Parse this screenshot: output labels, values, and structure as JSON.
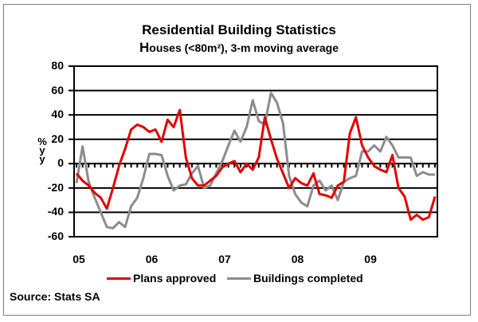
{
  "chart_data": {
    "type": "line",
    "title": "Residential Building Statistics",
    "subtitle_first_letter": "H",
    "subtitle_rest": "ouses (<80m²), 3-m moving average",
    "ylabel": "% y/y",
    "ylabel_parts": [
      "%",
      "y",
      "y"
    ],
    "xlabel": "",
    "ylim": [
      -60,
      80
    ],
    "yticks": [
      80,
      60,
      40,
      20,
      0,
      -20,
      -40,
      -60
    ],
    "ytick_labels": [
      "80",
      "60",
      "40",
      "20",
      "0",
      "-20",
      "-40",
      "-60"
    ],
    "xtick_labels": [
      "05",
      "06",
      "07",
      "08",
      "09"
    ],
    "grid": true,
    "legend_position": "bottom",
    "series": [
      {
        "name": "Plans approved",
        "color": "#e00000",
        "values": [
          -8,
          -14,
          -18,
          -24,
          -28,
          -37,
          -20,
          -2,
          12,
          28,
          32,
          30,
          26,
          28,
          18,
          36,
          30,
          44,
          5,
          -12,
          -18,
          -18,
          -14,
          -10,
          -3,
          0,
          2,
          -7,
          0,
          -5,
          5,
          38,
          20,
          4,
          -8,
          -20,
          -12,
          -16,
          -18,
          -8,
          -25,
          -26,
          -28,
          -18,
          -15,
          25,
          38,
          15,
          5,
          -2,
          -5,
          -7,
          7,
          -20,
          -27,
          -46,
          -42,
          -46,
          -44,
          -27
        ]
      },
      {
        "name": "Buildings completed",
        "color": "#8c8c8c",
        "values": [
          -16,
          14,
          -15,
          -28,
          -40,
          -52,
          -53,
          -48,
          -52,
          -35,
          -28,
          -12,
          8,
          8,
          7,
          -10,
          -22,
          -18,
          -17,
          -8,
          -2,
          -20,
          -18,
          -8,
          2,
          15,
          27,
          18,
          30,
          52,
          35,
          32,
          58,
          50,
          33,
          -10,
          -25,
          -32,
          -35,
          -18,
          -14,
          -22,
          -18,
          -30,
          -15,
          -12,
          -10,
          10,
          10,
          15,
          10,
          22,
          15,
          5,
          5,
          5,
          -10,
          -7,
          -9,
          -9
        ]
      }
    ]
  },
  "source": "Source: Stats SA"
}
